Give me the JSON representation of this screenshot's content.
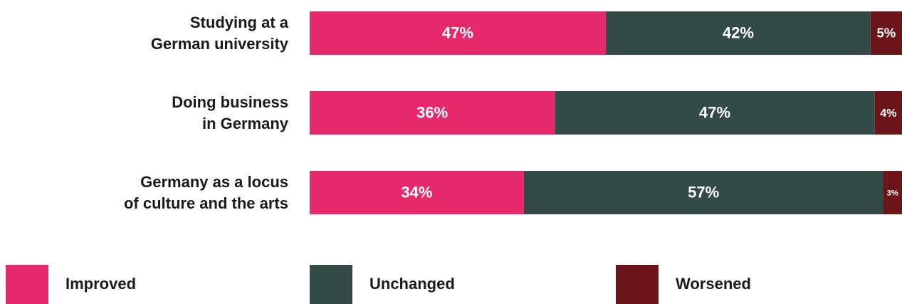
{
  "chart_data": {
    "type": "stacked-bar-horizontal",
    "categories": [
      "Studying at a\nGerman university",
      "Doing business\nin Germany",
      "Germany as a locus\nof culture and the arts"
    ],
    "series": [
      {
        "name": "Improved",
        "color": "#e6296a",
        "values": [
          47,
          36,
          34
        ],
        "value_labels": [
          "47%",
          "36%",
          "34%"
        ]
      },
      {
        "name": "Unchanged",
        "color": "#334b45",
        "values": [
          42,
          47,
          57
        ],
        "value_labels": [
          "42%",
          "47%",
          "57%"
        ]
      },
      {
        "name": "Worsened",
        "color": "#6b1419",
        "values": [
          5,
          4,
          3
        ],
        "value_labels": [
          "5%",
          "4%",
          "3%"
        ]
      }
    ]
  }
}
